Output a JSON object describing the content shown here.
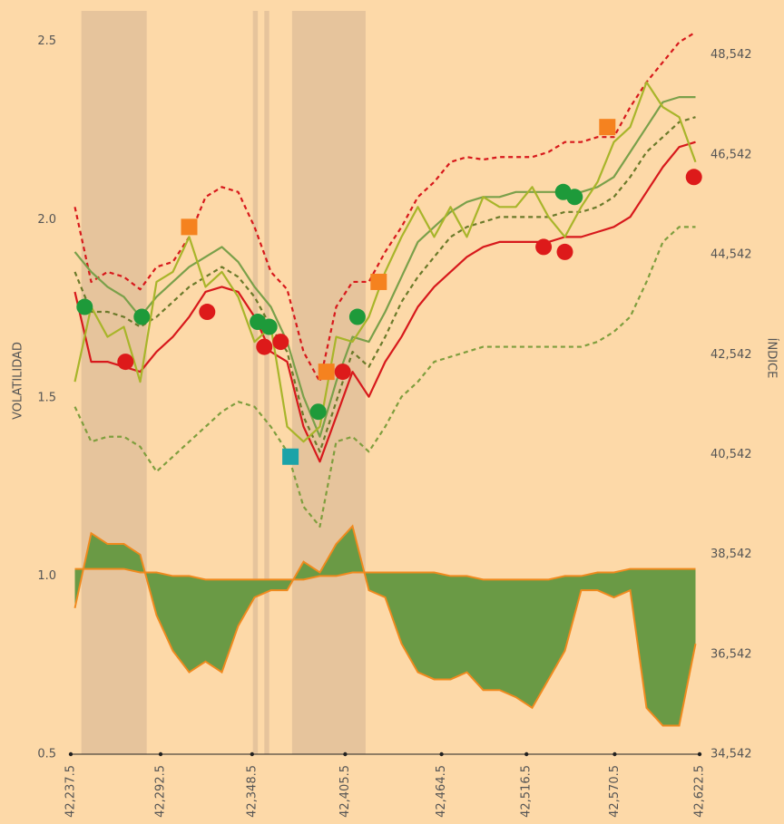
{
  "chart_data": {
    "type": "line",
    "y_label": "VOLATILIDAD",
    "y2_label": "ÍNDICE",
    "xlim": [
      42237.5,
      42622.5
    ],
    "xticks": [
      {
        "value": 42237.5,
        "label": "42,237.5"
      },
      {
        "value": 42292.5,
        "label": "42,292.5"
      },
      {
        "value": 42348.5,
        "label": "42,348.5"
      },
      {
        "value": 42405.5,
        "label": "42,405.5"
      },
      {
        "value": 42464.5,
        "label": "42,464.5"
      },
      {
        "value": 42516.5,
        "label": "42,516.5"
      },
      {
        "value": 42570.5,
        "label": "42,570.5"
      },
      {
        "value": 42622.5,
        "label": "42,622.5"
      }
    ],
    "ylim": [
      0.5,
      2.54
    ],
    "yticks": [
      0.5,
      {
        "value": 1,
        "label": "1.0"
      },
      1.5,
      {
        "value": 2,
        "label": "2.0"
      },
      2.5
    ],
    "y2lim": [
      34542,
      49100
    ],
    "y2ticks": [
      {
        "value": 34542,
        "label": "34,542"
      },
      {
        "value": 36542,
        "label": "36,542"
      },
      {
        "value": 38542,
        "label": "38,542"
      },
      {
        "value": 40542,
        "label": "40,542"
      },
      {
        "value": 42542,
        "label": "42,542"
      },
      {
        "value": 44542,
        "label": "44,542"
      },
      {
        "value": 46542,
        "label": "46,542"
      },
      {
        "value": 48542,
        "label": "48,542"
      }
    ],
    "regions": [
      [
        42244,
        42284
      ],
      [
        42349,
        42352
      ],
      [
        42356,
        42359
      ],
      [
        42373,
        42418
      ]
    ],
    "region_color": "#e6c49c",
    "x": [
      42240,
      42250,
      42260,
      42270,
      42280,
      42290,
      42300,
      42310,
      42320,
      42330,
      42340,
      42350,
      42360,
      42370,
      42380,
      42390,
      42400,
      42410,
      42420,
      42430,
      42440,
      42450,
      42460,
      42470,
      42480,
      42490,
      42500,
      42510,
      42520,
      42530,
      42540,
      42550,
      42560,
      42570,
      42580,
      42590,
      42600,
      42610,
      42620
    ],
    "area": {
      "fill": "#6a9a45",
      "line_color": "#f08a1e",
      "base": [
        1.02,
        1.02,
        1.02,
        1.02,
        1.01,
        1.01,
        1.0,
        1.0,
        0.99,
        0.99,
        0.99,
        0.99,
        0.99,
        0.99,
        0.99,
        1.0,
        1.0,
        1.01,
        1.01,
        1.01,
        1.01,
        1.01,
        1.01,
        1.0,
        1.0,
        0.99,
        0.99,
        0.99,
        0.99,
        0.99,
        1.0,
        1.0,
        1.01,
        1.01,
        1.02,
        1.02,
        1.02,
        1.02,
        1.02
      ],
      "values": [
        0.91,
        1.12,
        1.09,
        1.09,
        1.06,
        0.89,
        0.79,
        0.73,
        0.76,
        0.73,
        0.86,
        0.94,
        0.96,
        0.96,
        1.04,
        1.01,
        1.09,
        1.14,
        0.96,
        0.94,
        0.81,
        0.73,
        0.71,
        0.71,
        0.73,
        0.68,
        0.68,
        0.66,
        0.63,
        0.71,
        0.79,
        0.96,
        0.96,
        0.94,
        0.96,
        0.63,
        0.58,
        0.58,
        0.81
      ]
    },
    "series": [
      {
        "color": "#d7191c",
        "dash": true,
        "axis": "y2",
        "values": [
          45500,
          44000,
          44200,
          44100,
          43850,
          44300,
          44400,
          44900,
          45700,
          45900,
          45800,
          45100,
          44200,
          43850,
          42600,
          42000,
          43500,
          44000,
          44000,
          44600,
          45100,
          45700,
          46000,
          46400,
          46500,
          46450,
          46500,
          46500,
          46500,
          46600,
          46800,
          46800,
          46900,
          46900,
          47500,
          48000,
          48400,
          48800,
          49000
        ]
      },
      {
        "color": "#d7191c",
        "dash": false,
        "axis": "y2",
        "values": [
          43800,
          42400,
          42400,
          42300,
          42200,
          42600,
          42900,
          43300,
          43800,
          43900,
          43800,
          43300,
          42600,
          42400,
          41100,
          40400,
          41300,
          42200,
          41700,
          42400,
          42900,
          43500,
          43900,
          44200,
          44500,
          44700,
          44800,
          44800,
          44800,
          44800,
          44900,
          44900,
          45000,
          45100,
          45300,
          45800,
          46300,
          46700,
          46800
        ]
      },
      {
        "color": "#7aa04a",
        "dash": false,
        "axis": "y2",
        "values": [
          44600,
          44200,
          43900,
          43700,
          43300,
          43700,
          44000,
          44300,
          44500,
          44700,
          44400,
          43900,
          43500,
          42800,
          41700,
          40900,
          42000,
          42900,
          42800,
          43400,
          44100,
          44800,
          45100,
          45400,
          45600,
          45700,
          45700,
          45800,
          45800,
          45800,
          45800,
          45800,
          45900,
          46100,
          46600,
          47100,
          47600,
          47700,
          47700
        ]
      },
      {
        "color": "#6b7a2a",
        "dash": true,
        "axis": "y2",
        "values": [
          44200,
          43400,
          43400,
          43300,
          43100,
          43300,
          43600,
          43900,
          44100,
          44300,
          44100,
          43700,
          43100,
          42600,
          41300,
          40600,
          41600,
          42600,
          42300,
          42900,
          43600,
          44100,
          44500,
          44900,
          45100,
          45200,
          45300,
          45300,
          45300,
          45300,
          45400,
          45400,
          45500,
          45700,
          46100,
          46600,
          46900,
          47200,
          47300
        ]
      },
      {
        "color": "#7f9e3e",
        "dash": true,
        "axis": "y2",
        "values": [
          41500,
          40800,
          40900,
          40900,
          40700,
          40200,
          40500,
          40800,
          41100,
          41400,
          41600,
          41500,
          41100,
          40600,
          39500,
          39100,
          40800,
          40900,
          40600,
          41100,
          41700,
          42000,
          42400,
          42500,
          42600,
          42700,
          42700,
          42700,
          42700,
          42700,
          42700,
          42700,
          42800,
          43000,
          43300,
          44000,
          44800,
          45100,
          45100
        ]
      },
      {
        "color": "#a8b52a",
        "dash": false,
        "axis": "y2",
        "values": [
          42000,
          43500,
          42900,
          43100,
          42000,
          44000,
          44200,
          44900,
          43900,
          44200,
          43700,
          42800,
          43100,
          41100,
          40800,
          41100,
          42900,
          42800,
          43300,
          44200,
          44900,
          45500,
          44900,
          45500,
          44900,
          45700,
          45500,
          45500,
          45900,
          45300,
          44900,
          45500,
          46000,
          46800,
          47100,
          48000,
          47500,
          47300,
          46400
        ]
      }
    ],
    "markers": [
      {
        "shape": "circle",
        "color": "#1e9a3a",
        "x": [
          42246,
          42281,
          42352,
          42359,
          42389,
          42413,
          42539,
          42546
        ],
        "values": [
          43500,
          43300,
          43200,
          43100,
          41400,
          43300,
          45800,
          45700
        ]
      },
      {
        "shape": "circle",
        "color": "#dd1a1a",
        "x": [
          42271,
          42321,
          42356,
          42366,
          42404,
          42527,
          42540,
          42619
        ],
        "values": [
          42400,
          43400,
          42700,
          42800,
          42200,
          44700,
          44600,
          46100
        ]
      },
      {
        "shape": "square",
        "color": "#f5821f",
        "x": [
          42310,
          42394,
          42426,
          42566
        ],
        "values": [
          45100,
          42200,
          44000,
          47100
        ]
      },
      {
        "shape": "square",
        "color": "#1ba3a8",
        "x": [
          42372
        ],
        "values": [
          40500
        ]
      }
    ]
  }
}
